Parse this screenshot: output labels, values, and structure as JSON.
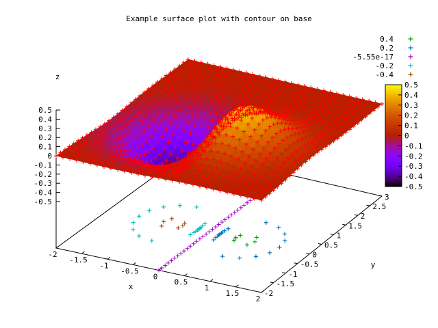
{
  "chart_data": {
    "type": "surface",
    "title": "Example surface plot with contour on base",
    "xlabel": "x",
    "ylabel": "y",
    "zlabel": "z",
    "function": "z = x * exp(-x^2 - y^2)",
    "x_range": [
      -2,
      2
    ],
    "y_range": [
      -2,
      3
    ],
    "z_range": [
      -0.5,
      0.5
    ],
    "x_ticks": [
      "-2",
      "-1.5",
      "-1",
      "-0.5",
      "0",
      "0.5",
      "1",
      "1.5",
      "2"
    ],
    "y_ticks": [
      "-2",
      "-1.5",
      "-1",
      "-0.5",
      "0",
      "0.5",
      "1",
      "1.5",
      "2",
      "2.5",
      "3"
    ],
    "z_ticks": [
      "0.5",
      "0.4",
      "0.3",
      "0.2",
      "0.1",
      "0",
      "-0.1",
      "-0.2",
      "-0.3",
      "-0.4",
      "-0.5"
    ],
    "colorbar": {
      "ticks": [
        "0.5",
        "0.4",
        "0.3",
        "0.2",
        "0.1",
        "0",
        "-0.1",
        "-0.2",
        "-0.3",
        "-0.4",
        "-0.5"
      ],
      "range": [
        -0.5,
        0.5
      ],
      "palette": "black-purple-red-orange-yellow"
    },
    "surface_marker": "+",
    "surface_marker_color": "#ff0000",
    "legend": {
      "placement": "top-right",
      "entries": [
        {
          "label": "0.4",
          "level": 0.4,
          "color": "#00a000"
        },
        {
          "label": "0.2",
          "level": 0.2,
          "color": "#0072c0"
        },
        {
          "label": "-5.55e-17",
          "level": 0.0,
          "color": "#a000c0"
        },
        {
          "label": "-0.2",
          "level": -0.2,
          "color": "#00c0c0"
        },
        {
          "label": "-0.4",
          "level": -0.4,
          "color": "#a04000"
        }
      ]
    }
  }
}
